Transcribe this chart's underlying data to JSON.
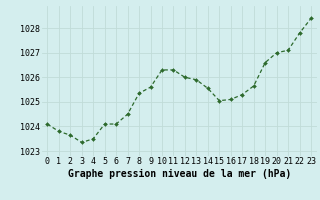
{
  "x": [
    0,
    1,
    2,
    3,
    4,
    5,
    6,
    7,
    8,
    9,
    10,
    11,
    12,
    13,
    14,
    15,
    16,
    17,
    18,
    19,
    20,
    21,
    22,
    23
  ],
  "y": [
    1024.1,
    1023.8,
    1023.65,
    1023.35,
    1023.5,
    1024.1,
    1024.1,
    1024.5,
    1025.35,
    1025.6,
    1026.3,
    1026.3,
    1026.0,
    1025.9,
    1025.55,
    1025.05,
    1025.1,
    1025.3,
    1025.65,
    1026.6,
    1027.0,
    1027.1,
    1027.8,
    1028.4
  ],
  "line_color": "#2d6a2d",
  "marker_color": "#2d6a2d",
  "bg_color": "#d4eeee",
  "grid_color": "#c0dcd8",
  "xlabel": "Graphe pression niveau de la mer (hPa)",
  "xlabel_fontsize": 7.0,
  "tick_fontsize": 6.0,
  "ylim": [
    1022.8,
    1028.9
  ],
  "xlim": [
    -0.5,
    23.5
  ],
  "yticks": [
    1023,
    1024,
    1025,
    1026,
    1027,
    1028
  ],
  "xticks": [
    0,
    1,
    2,
    3,
    4,
    5,
    6,
    7,
    8,
    9,
    10,
    11,
    12,
    13,
    14,
    15,
    16,
    17,
    18,
    19,
    20,
    21,
    22,
    23
  ]
}
